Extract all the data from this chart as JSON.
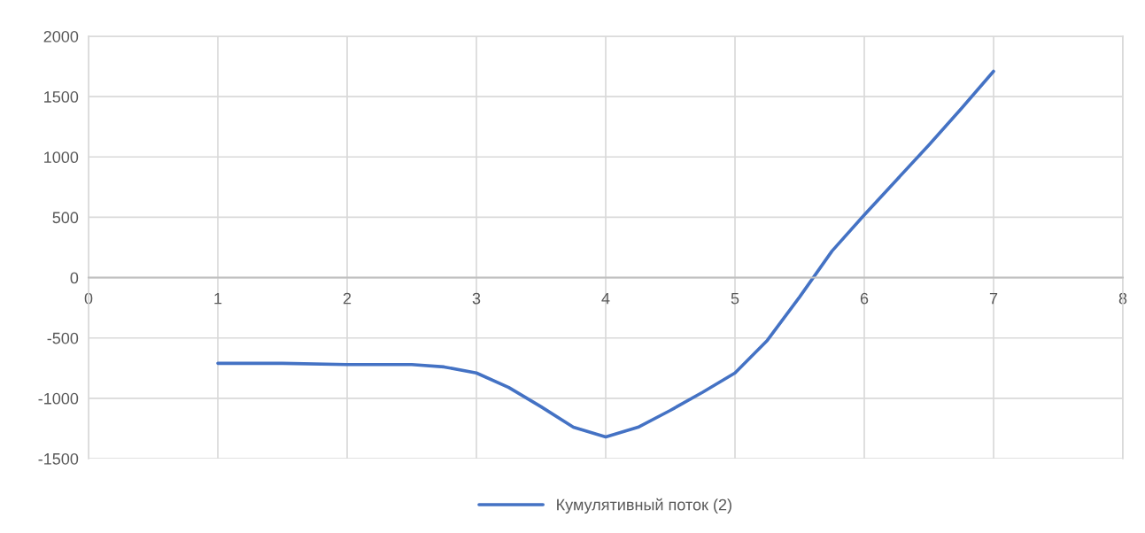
{
  "chart_data": {
    "type": "line",
    "x": [
      1,
      1.5,
      2,
      2.5,
      2.75,
      3,
      3.25,
      3.5,
      3.75,
      4,
      4.25,
      4.5,
      4.75,
      5,
      5.25,
      5.5,
      5.75,
      6,
      6.25,
      6.5,
      6.75,
      7
    ],
    "series": [
      {
        "name": "Кумулятивный поток (2)",
        "color": "#4472c4",
        "values": [
          -710,
          -710,
          -720,
          -720,
          -740,
          -790,
          -910,
          -1070,
          -1240,
          -1320,
          -1240,
          -1100,
          -950,
          -790,
          -520,
          -160,
          220,
          520,
          810,
          1100,
          1400,
          1710
        ]
      }
    ],
    "xlim": [
      0,
      8
    ],
    "xticks": [
      0,
      1,
      2,
      3,
      4,
      5,
      6,
      7,
      8
    ],
    "ylim": [
      -1500,
      2000
    ],
    "yticks": [
      -1500,
      -1000,
      -500,
      0,
      500,
      1000,
      1500,
      2000
    ],
    "grid": true,
    "legend": "bottom",
    "marker": "none",
    "line_style": "solid"
  }
}
